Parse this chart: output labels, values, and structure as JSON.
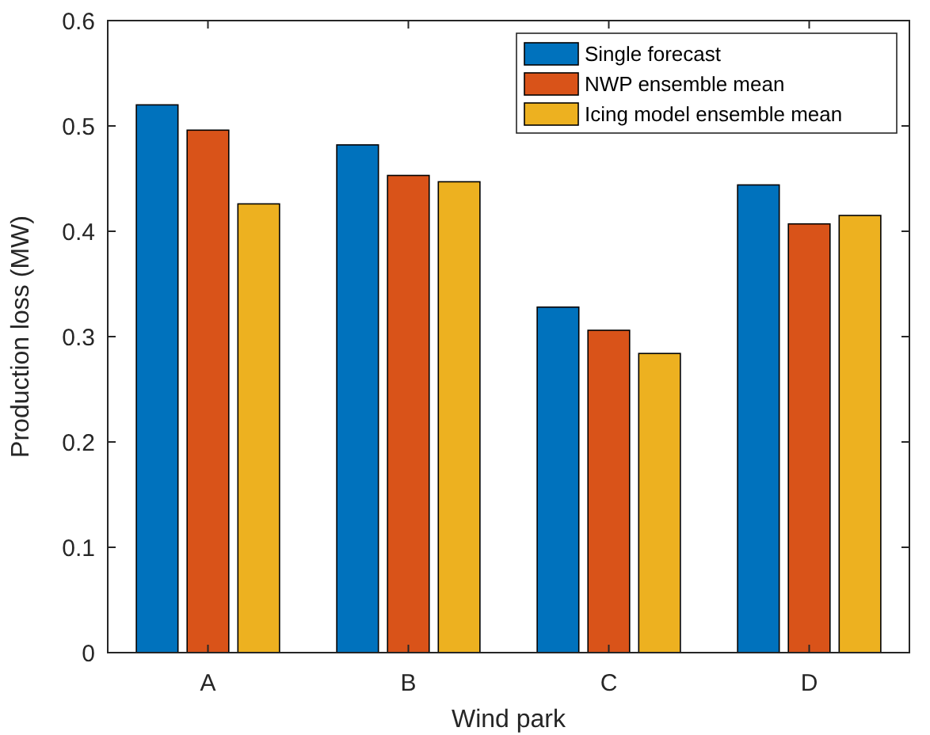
{
  "chart_data": {
    "type": "bar",
    "xlabel": "Wind park",
    "ylabel": "Production loss (MW)",
    "categories": [
      "A",
      "B",
      "C",
      "D"
    ],
    "series": [
      {
        "name": "Single forecast",
        "color": "#0072bd",
        "values": [
          0.52,
          0.482,
          0.328,
          0.444
        ]
      },
      {
        "name": "NWP ensemble mean",
        "color": "#d95319",
        "values": [
          0.496,
          0.453,
          0.306,
          0.407
        ]
      },
      {
        "name": "Icing model ensemble mean",
        "color": "#edb120",
        "values": [
          0.426,
          0.447,
          0.284,
          0.415
        ]
      }
    ],
    "ylim": [
      0,
      0.6
    ],
    "yticks": [
      0,
      0.1,
      0.2,
      0.3,
      0.4,
      0.5,
      0.6
    ],
    "grid": false,
    "legend": "top right"
  }
}
